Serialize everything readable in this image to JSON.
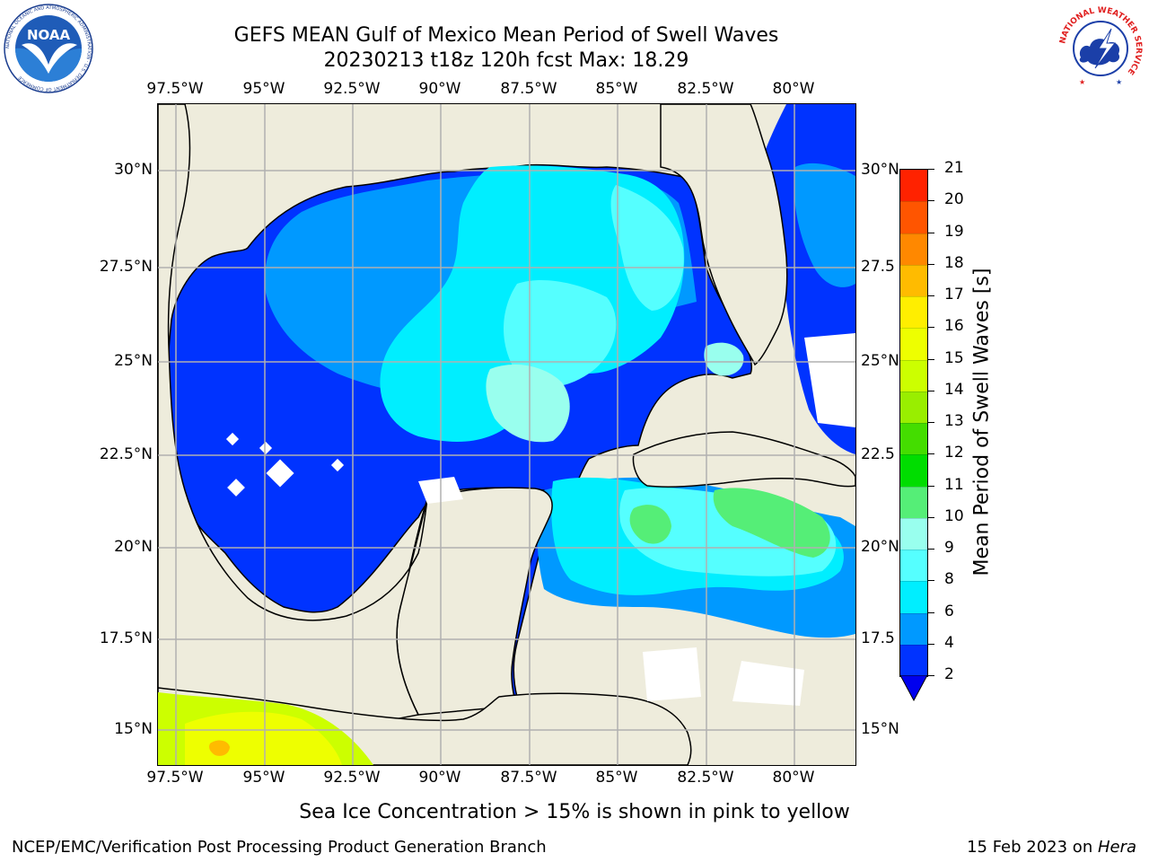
{
  "header": {
    "title_line1": "GEFS MEAN Gulf of Mexico Mean Period of Swell Waves",
    "title_line2": "20230213 t18z 120h fcst   Max: 18.29"
  },
  "logos": {
    "noaa_text": "NOAA",
    "noaa_ring": "NATIONAL OCEANIC AND ATMOSPHERIC ADMINISTRATION · U.S. DEPARTMENT OF COMMERCE",
    "nws_ring": "NATIONAL WEATHER SERVICE"
  },
  "map": {
    "lon_labels": [
      "97.5°W",
      "95°W",
      "92.5°W",
      "90°W",
      "87.5°W",
      "85°W",
      "82.5°W",
      "80°W"
    ],
    "lat_labels_left": [
      "30°N",
      "27.5°N",
      "25°N",
      "22.5°N",
      "20°N",
      "17.5°N",
      "15°N"
    ],
    "lat_labels_right": [
      "30°N",
      "27.5",
      "25°N",
      "22.5",
      "20°N",
      "17.5",
      "15°N"
    ],
    "colors": {
      "land": "#eeecdc",
      "coast": "#000000",
      "grid": "#b0b0b0"
    }
  },
  "colorbar": {
    "label": "Mean Period of Swell Waves [s]",
    "ticks": [
      "2",
      "4",
      "6",
      "8",
      "9",
      "10",
      "11",
      "12",
      "13",
      "14",
      "15",
      "16",
      "17",
      "18",
      "19",
      "20",
      "21"
    ],
    "colors": [
      "#0033ff",
      "#0099ff",
      "#00eeff",
      "#55ffff",
      "#99ffee",
      "#55ee77",
      "#00dd00",
      "#44dd00",
      "#99ee00",
      "#ccff00",
      "#eeff00",
      "#ffee00",
      "#ffbb00",
      "#ff8800",
      "#ff5500",
      "#ff2200"
    ],
    "extend_color": "#0000ee"
  },
  "footer": {
    "ice_note": "Sea Ice Concentration > 15% is shown in pink to yellow",
    "left": "NCEP/EMC/Verification Post Processing Product Generation Branch",
    "right_prefix": "15 Feb 2023 on ",
    "right_host": "Hera"
  }
}
